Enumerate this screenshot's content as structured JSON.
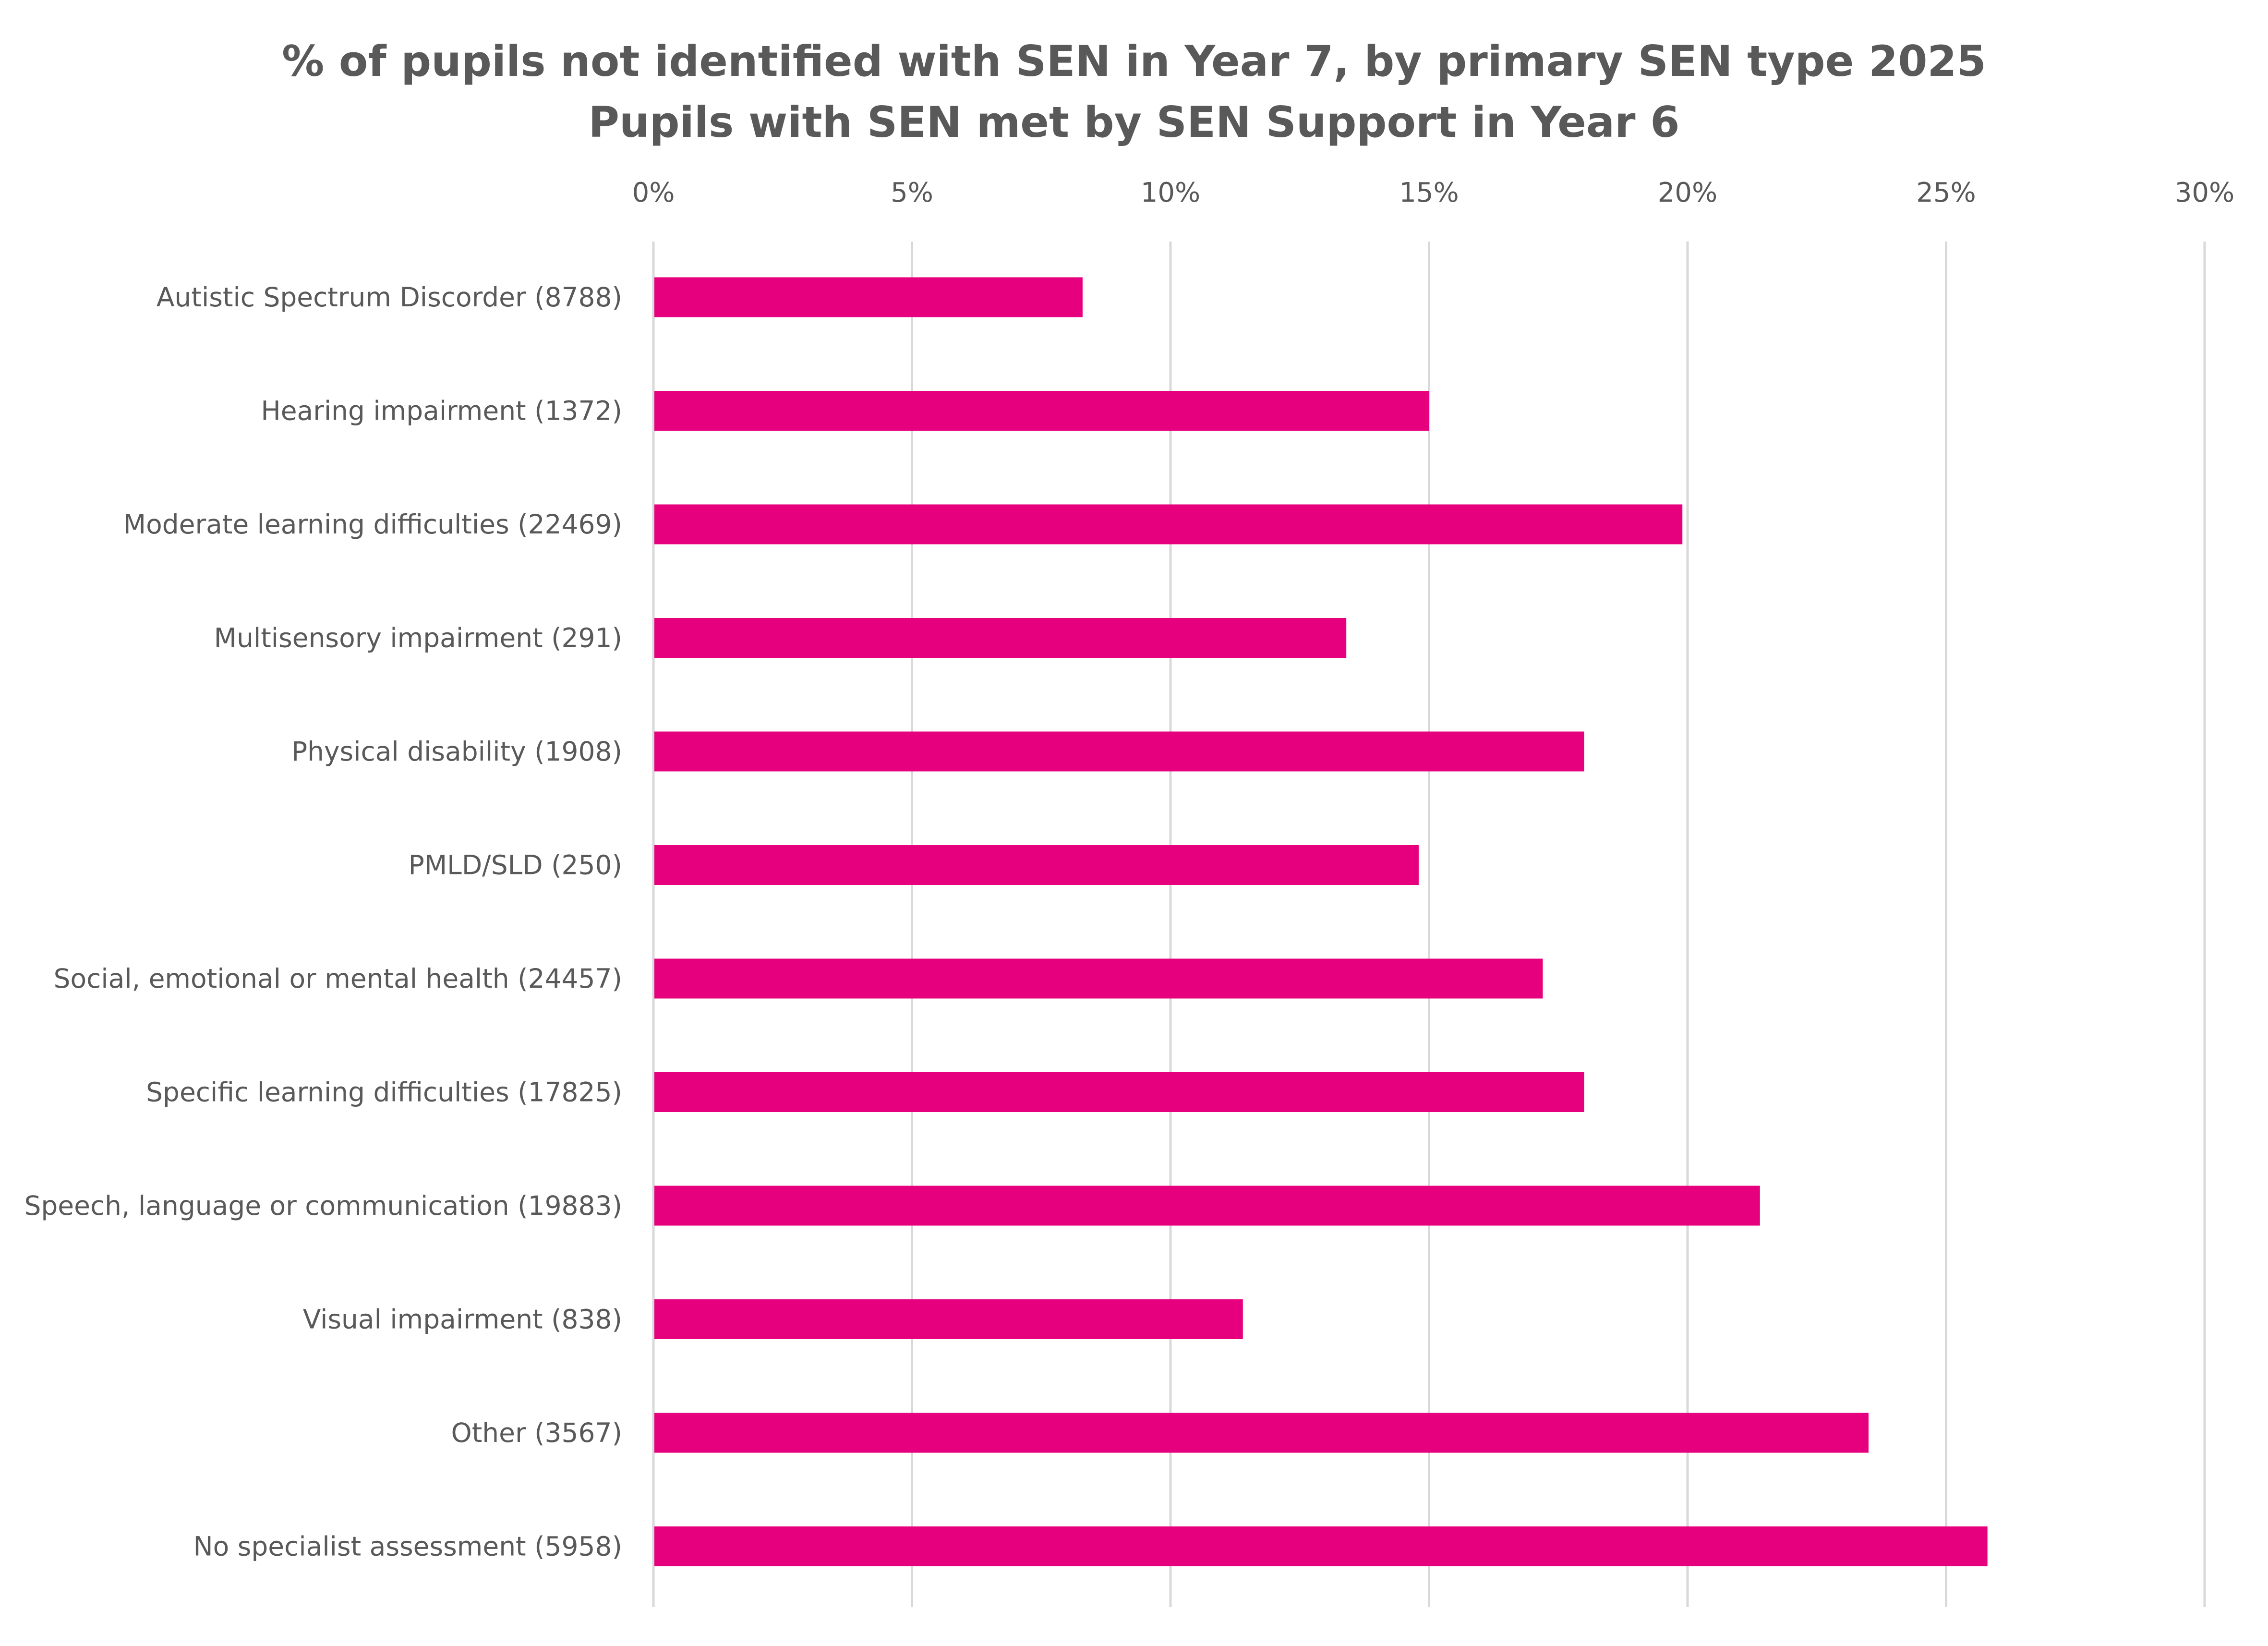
{
  "colors": {
    "bar": "#E6007E",
    "grid": "#D9D9D9",
    "text": "#595959",
    "background": "#FFFFFF"
  },
  "chart_data": {
    "type": "bar",
    "orientation": "horizontal",
    "title": "% of pupils not identified with SEN in Year 7, by primary SEN type 2025",
    "subtitle": "Pupils with SEN met by SEN Support in Year 6",
    "xlabel": "",
    "ylabel": "",
    "xlim": [
      0,
      30
    ],
    "x_axis_position": "top",
    "x_tick_labels": [
      "0%",
      "5%",
      "10%",
      "15%",
      "20%",
      "25%",
      "30%"
    ],
    "x_ticks": [
      0,
      5,
      10,
      15,
      20,
      25,
      30
    ],
    "grid": true,
    "legend": "none",
    "categories": [
      "Autistic Spectrum Discorder (8788)",
      "Hearing impairment (1372)",
      "Moderate learning difficulties (22469)",
      "Multisensory impairment (291)",
      "Physical disability (1908)",
      "PMLD/SLD (250)",
      "Social, emotional or mental health (24457)",
      "Specific learning difficulties (17825)",
      "Speech, language or communication (19883)",
      "Visual impairment (838)",
      "Other (3567)",
      "No specialist assessment (5958)"
    ],
    "series": [
      {
        "name": "% not identified with SEN in Year 7",
        "values": [
          8.3,
          15.0,
          19.9,
          13.4,
          18.0,
          14.8,
          17.2,
          18.0,
          21.4,
          11.4,
          23.5,
          25.8
        ]
      }
    ]
  }
}
